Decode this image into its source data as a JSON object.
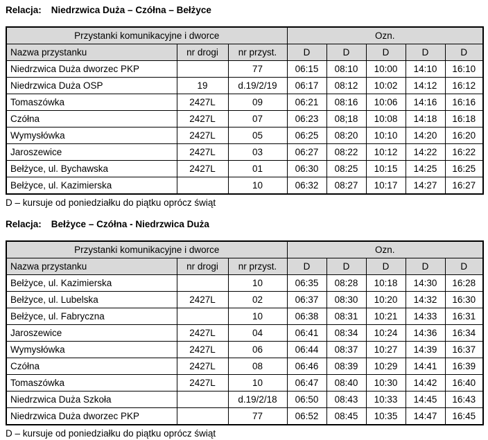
{
  "colors": {
    "header_bg": "#d9d9d9",
    "border": "#000000",
    "text": "#000000",
    "page_bg": "#ffffff"
  },
  "sections": [
    {
      "relacja_label": "Relacja:",
      "route": "Niedrzwica Duża – Czółna – Bełżyce",
      "footnote": "D – kursuje od poniedziałku do piątku oprócz świąt",
      "table": {
        "group_left": "Przystanki komunikacyjne i dworce",
        "group_right": "Ozn.",
        "col_headers": [
          "Nazwa przystanku",
          "nr drogi",
          "nr przyst.",
          "D",
          "D",
          "D",
          "D",
          "D"
        ],
        "rows": [
          {
            "name": "Niedrzwica Duża dworzec PKP",
            "nr_drogi": "",
            "nr_przyst": "77",
            "times": [
              "06:15",
              "08:10",
              "10:00",
              "14:10",
              "16:10"
            ]
          },
          {
            "name": "Niedrzwica Duża OSP",
            "nr_drogi": "19",
            "nr_przyst": "d.19/2/19",
            "times": [
              "06:17",
              "08:12",
              "10:02",
              "14:12",
              "16:12"
            ]
          },
          {
            "name": "Tomaszówka",
            "nr_drogi": "2427L",
            "nr_przyst": "09",
            "times": [
              "06:21",
              "08:16",
              "10:06",
              "14:16",
              "16:16"
            ]
          },
          {
            "name": "Czółna",
            "nr_drogi": "2427L",
            "nr_przyst": "07",
            "times": [
              "06:23",
              "08;18",
              "10:08",
              "14:18",
              "16:18"
            ]
          },
          {
            "name": "Wymysłówka",
            "nr_drogi": "2427L",
            "nr_przyst": "05",
            "times": [
              "06:25",
              "08:20",
              "10:10",
              "14:20",
              "16:20"
            ]
          },
          {
            "name": "Jaroszewice",
            "nr_drogi": "2427L",
            "nr_przyst": "03",
            "times": [
              "06:27",
              "08:22",
              "10:12",
              "14:22",
              "16:22"
            ]
          },
          {
            "name": "Bełżyce, ul. Bychawska",
            "nr_drogi": "2427L",
            "nr_przyst": "01",
            "times": [
              "06:30",
              "08:25",
              "10:15",
              "14:25",
              "16:25"
            ]
          },
          {
            "name": "Bełżyce, ul. Kazimierska",
            "nr_drogi": "",
            "nr_przyst": "10",
            "times": [
              "06:32",
              "08:27",
              "10:17",
              "14:27",
              "16:27"
            ]
          }
        ]
      }
    },
    {
      "relacja_label": "Relacja:",
      "route": "Bełżyce – Czółna - Niedrzwica Duża",
      "footnote": "D – kursuje od poniedziałku do piątku oprócz świąt",
      "table": {
        "group_left": "Przystanki komunikacyjne i dworce",
        "group_right": "Ozn.",
        "col_headers": [
          "Nazwa przystanku",
          "nr drogi",
          "nr przyst.",
          "D",
          "D",
          "D",
          "D",
          "D"
        ],
        "rows": [
          {
            "name": "Bełżyce, ul. Kazimierska",
            "nr_drogi": "",
            "nr_przyst": "10",
            "times": [
              "06:35",
              "08:28",
              "10:18",
              "14:30",
              "16:28"
            ]
          },
          {
            "name": "Bełżyce, ul. Lubelska",
            "nr_drogi": "2427L",
            "nr_przyst": "02",
            "times": [
              "06:37",
              "08:30",
              "10:20",
              "14:32",
              "16:30"
            ]
          },
          {
            "name": "Bełżyce, ul. Fabryczna",
            "nr_drogi": "",
            "nr_przyst": "10",
            "times": [
              "06:38",
              "08:31",
              "10:21",
              "14:33",
              "16:31"
            ]
          },
          {
            "name": "Jaroszewice",
            "nr_drogi": "2427L",
            "nr_przyst": "04",
            "times": [
              "06:41",
              "08:34",
              "10:24",
              "14:36",
              "16:34"
            ]
          },
          {
            "name": "Wymysłówka",
            "nr_drogi": "2427L",
            "nr_przyst": "06",
            "times": [
              "06:44",
              "08:37",
              "10:27",
              "14:39",
              "16:37"
            ]
          },
          {
            "name": "Czółna",
            "nr_drogi": "2427L",
            "nr_przyst": "08",
            "times": [
              "06:46",
              "08:39",
              "10:29",
              "14:41",
              "16:39"
            ]
          },
          {
            "name": "Tomaszówka",
            "nr_drogi": "2427L",
            "nr_przyst": "10",
            "times": [
              "06:47",
              "08:40",
              "10:30",
              "14:42",
              "16:40"
            ]
          },
          {
            "name": "Niedrzwica Duża Szkoła",
            "nr_drogi": "",
            "nr_przyst": "d.19/2/18",
            "times": [
              "06:50",
              "08:43",
              "10:33",
              "14:45",
              "16:43"
            ]
          },
          {
            "name": "Niedrzwica Duża dworzec PKP",
            "nr_drogi": "",
            "nr_przyst": "77",
            "times": [
              "06:52",
              "08:45",
              "10:35",
              "14:47",
              "16:45"
            ]
          }
        ]
      }
    }
  ]
}
